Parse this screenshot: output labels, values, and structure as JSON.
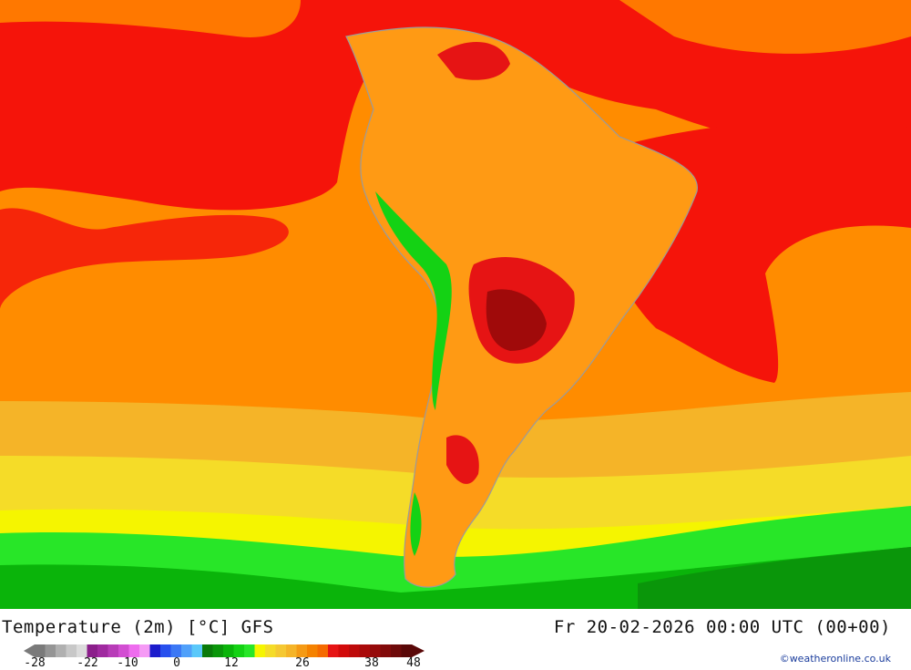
{
  "map": {
    "region": "South America",
    "field": "temperature-2m"
  },
  "footer": {
    "title": "Temperature (2m) [°C] GFS",
    "valid_time": "Fr 20-02-2026 00:00 UTC (00+00)",
    "credit": "©weatheronline.co.uk"
  },
  "legend": {
    "tick_labels": [
      "-28",
      "-22",
      "-10",
      "0",
      "12",
      "26",
      "38",
      "48"
    ],
    "colors": [
      "#7a7a7a",
      "#959595",
      "#b0b0b0",
      "#c8c8c8",
      "#dcdcdc",
      "#8b1f8b",
      "#a02aa0",
      "#b83cb8",
      "#d24ed2",
      "#ee6cee",
      "#f59af5",
      "#1c1ccc",
      "#2850ee",
      "#3c78f5",
      "#50a0fa",
      "#5ac8fa",
      "#0a7a0a",
      "#0a960a",
      "#0ab40a",
      "#14d214",
      "#28e628",
      "#f5f500",
      "#f5dc28",
      "#f5c832",
      "#f5b428",
      "#f59a14",
      "#f58200",
      "#f56a00",
      "#e61414",
      "#d20a0a",
      "#be0a0a",
      "#aa0a0a",
      "#960a0a",
      "#820a0a",
      "#6e0a0a",
      "#5a0808"
    ]
  }
}
